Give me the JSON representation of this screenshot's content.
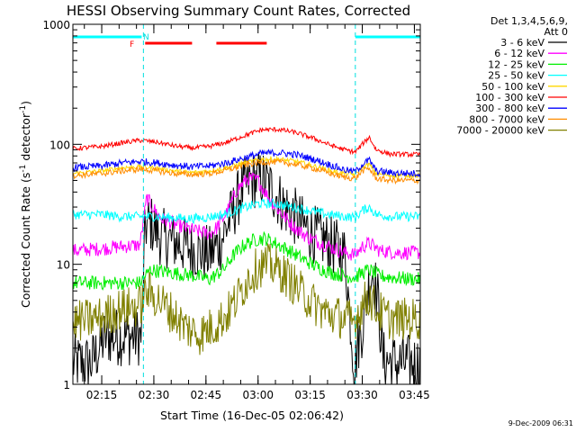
{
  "chart_data": {
    "type": "line",
    "title": "HESSI Observing Summary Count Rates, Corrected",
    "xlabel": "Start Time (16-Dec-05 02:06:42)",
    "ylabel_main": "Corrected Count Rate (s",
    "ylabel_sup1": "-1",
    "ylabel_mid": " detector",
    "ylabel_sup2": "-1",
    "ylabel_end": ")",
    "yscale": "log",
    "ylim": [
      1,
      1000
    ],
    "xlim_min": [
      126.7,
      226.7
    ],
    "x_unit": "minutes after 00:00 UT, 16-Dec-05",
    "x_ticks": [
      {
        "label": "02:15",
        "value": 135
      },
      {
        "label": "02:30",
        "value": 150
      },
      {
        "label": "02:45",
        "value": 165
      },
      {
        "label": "03:00",
        "value": 180
      },
      {
        "label": "03:15",
        "value": 195
      },
      {
        "label": "03:30",
        "value": 210
      },
      {
        "label": "03:45",
        "value": 225
      }
    ],
    "y_ticks": [
      {
        "label": "1",
        "value": 1
      },
      {
        "label": "10",
        "value": 10
      },
      {
        "label": "100",
        "value": 100
      },
      {
        "label": "1000",
        "value": 1000
      }
    ],
    "legend": {
      "header1": "Det 1,3,4,5,6,9,",
      "header2": "Att 0",
      "placement": "right"
    },
    "grid": false,
    "markers": {
      "cyan_vertical_lines_min": [
        147,
        208
      ],
      "night_bar": {
        "color": "#00ffff",
        "ranges_min": [
          [
            126.7,
            146.5
          ],
          [
            208,
            226.7
          ]
        ]
      },
      "flag_label_F": "F",
      "flag_label_N": "N",
      "flare_flag_bar": {
        "color": "#ff0000",
        "ranges_min": [
          [
            147.5,
            161
          ],
          [
            168,
            182.5
          ]
        ]
      }
    },
    "series": [
      {
        "name": "3 - 6 keV",
        "color": "#000000",
        "noise": 0.25,
        "x": [
          127,
          132,
          136,
          141,
          146.5,
          147.5,
          149,
          152,
          157,
          162,
          166,
          169,
          172,
          175,
          178,
          181,
          184,
          187,
          190,
          193,
          196,
          199,
          202,
          205,
          207.8,
          208.5,
          210,
          211.5,
          213,
          214.5,
          216,
          220,
          226
        ],
        "y": [
          1.5,
          1.5,
          2.5,
          2.5,
          2.5,
          21,
          22,
          17,
          15,
          13,
          12,
          15,
          24,
          40,
          50,
          52,
          42,
          32,
          26,
          21,
          18,
          16,
          14,
          12,
          1.3,
          2,
          3,
          6,
          9,
          5,
          1.6,
          1.5,
          1.5
        ]
      },
      {
        "name": "6 - 12 keV",
        "color": "#ff00ff",
        "noise": 0.06,
        "x": [
          127,
          135,
          140,
          146,
          148,
          149,
          152,
          157,
          162,
          166,
          168,
          171,
          174,
          177,
          180,
          183,
          186,
          190,
          194,
          198,
          202,
          205,
          208,
          210,
          212,
          215,
          220,
          226
        ],
        "y": [
          13,
          13.5,
          14,
          14.5,
          36,
          32,
          24,
          21,
          19,
          18,
          20,
          27,
          42,
          52,
          50,
          36,
          28,
          21,
          17,
          15,
          13.5,
          12.5,
          12,
          14,
          15,
          13,
          12.5,
          12.5
        ]
      },
      {
        "name": "12 - 25 keV",
        "color": "#00ee00",
        "noise": 0.06,
        "x": [
          127,
          140,
          146,
          149,
          155,
          162,
          166,
          170,
          173,
          176,
          179,
          182,
          185,
          189,
          193,
          197,
          201,
          205,
          208,
          210,
          212,
          215,
          220,
          226
        ],
        "y": [
          7,
          7,
          7,
          9,
          8.5,
          8,
          7.5,
          9,
          12,
          14.5,
          16,
          16.5,
          15,
          13,
          11,
          9.5,
          8.5,
          8,
          7.8,
          8.5,
          9,
          8,
          7.7,
          7.5
        ]
      },
      {
        "name": "25 - 50 keV",
        "color": "#00ffff",
        "noise": 0.04,
        "x": [
          127,
          135,
          140,
          146,
          150,
          155,
          160,
          165,
          170,
          175,
          180,
          185,
          190,
          195,
          200,
          205,
          208,
          210,
          212,
          214,
          218,
          226
        ],
        "y": [
          26,
          26,
          25,
          25,
          25,
          24.5,
          24,
          24.5,
          26,
          29,
          32,
          32,
          30,
          28,
          26,
          25,
          24.5,
          28,
          30,
          26,
          25,
          25
        ]
      },
      {
        "name": "50 - 100 keV",
        "color": "#ffd700",
        "noise": 0.02,
        "x": [
          127,
          135,
          141,
          146,
          151,
          156,
          161,
          166,
          171,
          176,
          181,
          186,
          191,
          196,
          201,
          205,
          208,
          210,
          212,
          214,
          218,
          226
        ],
        "y": [
          57,
          60,
          64,
          65,
          63,
          60,
          58,
          60,
          64,
          70,
          75,
          75,
          72,
          66,
          60,
          57,
          56,
          64,
          68,
          57,
          55,
          55
        ]
      },
      {
        "name": "100 - 300 keV",
        "color": "#ff0000",
        "noise": 0.02,
        "x": [
          127,
          135,
          141,
          146,
          151,
          156,
          161,
          166,
          171,
          176,
          181,
          186,
          191,
          196,
          201,
          205,
          208,
          210,
          212,
          214,
          218,
          226
        ],
        "y": [
          92,
          96,
          103,
          108,
          104,
          97,
          93,
          96,
          104,
          118,
          132,
          133,
          125,
          112,
          98,
          90,
          86,
          100,
          115,
          90,
          83,
          82
        ]
      },
      {
        "name": "300 - 800 keV",
        "color": "#0000ff",
        "noise": 0.03,
        "x": [
          127,
          135,
          141,
          146,
          151,
          156,
          161,
          166,
          171,
          176,
          181,
          186,
          191,
          196,
          201,
          205,
          208,
          210,
          212,
          214,
          218,
          226
        ],
        "y": [
          64,
          66,
          70,
          72,
          70,
          67,
          65,
          66,
          70,
          77,
          84,
          85,
          82,
          75,
          67,
          61,
          59,
          68,
          74,
          60,
          58,
          57
        ]
      },
      {
        "name": "800 - 7000 keV",
        "color": "#ff8c00",
        "noise": 0.025,
        "x": [
          127,
          135,
          141,
          146,
          151,
          156,
          161,
          166,
          171,
          176,
          181,
          186,
          191,
          196,
          201,
          205,
          208,
          210,
          212,
          214,
          218,
          226
        ],
        "y": [
          55,
          57,
          60,
          62,
          60,
          57,
          56,
          57,
          61,
          67,
          71,
          71,
          68,
          63,
          57,
          53,
          52,
          60,
          63,
          52,
          50,
          50
        ]
      },
      {
        "name": "7000 - 20000 keV",
        "color": "#808000",
        "noise": 0.18,
        "x": [
          127,
          135,
          140,
          146,
          148,
          151,
          155,
          159,
          163,
          167,
          171,
          174,
          177,
          180,
          183,
          186,
          189,
          192,
          195,
          198,
          201,
          204,
          207.5,
          208.5,
          210,
          212,
          214,
          218,
          226
        ],
        "y": [
          3.3,
          3.6,
          4.2,
          4.5,
          6,
          5.2,
          4,
          3,
          2.6,
          3,
          3.8,
          5.2,
          7.5,
          9.5,
          10,
          9,
          7.5,
          6,
          5,
          4.2,
          3.8,
          3.6,
          3.3,
          3.8,
          4.5,
          5.5,
          4.2,
          3.5,
          3.5
        ]
      }
    ]
  },
  "footer_timestamp": "9-Dec-2009 06:31"
}
